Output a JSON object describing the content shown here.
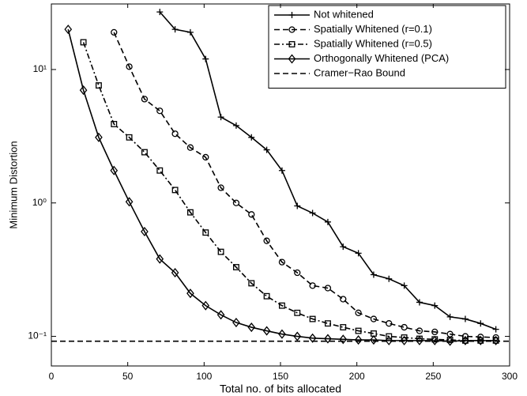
{
  "chart_data": {
    "type": "line",
    "xlabel": "Total no. of bits allocated",
    "ylabel": "Minimum Distortion",
    "x": [
      11,
      21,
      31,
      41,
      51,
      61,
      71,
      81,
      91,
      101,
      111,
      121,
      131,
      141,
      151,
      161,
      171,
      181,
      191,
      201,
      211,
      221,
      231,
      241,
      251,
      261,
      271,
      281,
      291
    ],
    "series": [
      {
        "name": "Not whitened",
        "color": "#000000",
        "marker": "plus",
        "dash": "solid",
        "values": [
          null,
          null,
          null,
          null,
          null,
          null,
          27,
          20,
          19,
          12,
          4.4,
          3.8,
          3.1,
          2.5,
          1.75,
          0.95,
          0.84,
          0.72,
          0.47,
          0.42,
          0.29,
          0.27,
          0.24,
          0.18,
          0.17,
          0.14,
          0.135,
          0.125,
          0.113
        ]
      },
      {
        "name": "Spatially Whitened (r=0.1)",
        "color": "#000000",
        "marker": "circle",
        "dash": "dashed",
        "values": [
          null,
          null,
          null,
          19,
          10.5,
          6,
          4.9,
          3.3,
          2.6,
          2.2,
          1.3,
          1.0,
          0.82,
          0.52,
          0.36,
          0.3,
          0.24,
          0.23,
          0.19,
          0.15,
          0.135,
          0.125,
          0.117,
          0.11,
          0.108,
          0.104,
          0.1,
          0.099,
          0.098
        ]
      },
      {
        "name": "Spatially Whitened (r=0.5)",
        "color": "#000000",
        "marker": "square",
        "dash": "dashdot",
        "values": [
          null,
          16,
          7.6,
          3.9,
          3.1,
          2.4,
          1.75,
          1.25,
          0.85,
          0.6,
          0.43,
          0.33,
          0.25,
          0.2,
          0.17,
          0.15,
          0.135,
          0.125,
          0.117,
          0.11,
          0.105,
          0.1,
          0.098,
          0.096,
          0.095,
          0.094,
          0.093,
          0.093,
          0.093
        ]
      },
      {
        "name": "Orthogonally Whitened (PCA)",
        "color": "#000000",
        "marker": "diamond",
        "dash": "solid",
        "values": [
          20,
          7,
          3.1,
          1.75,
          1.02,
          0.61,
          0.38,
          0.3,
          0.21,
          0.17,
          0.145,
          0.127,
          0.117,
          0.11,
          0.104,
          0.1,
          0.097,
          0.096,
          0.095,
          0.094,
          0.094,
          0.093,
          0.093,
          0.093,
          0.093,
          0.092,
          0.093,
          0.093,
          0.093
        ]
      },
      {
        "name": "Cramer−Rao Bound",
        "color": "#000000",
        "marker": "none",
        "dash": "dashed",
        "x": [
          0,
          300
        ],
        "values": [
          0.092,
          0.092
        ]
      }
    ],
    "xlim": [
      0,
      300
    ],
    "xticks": [
      0,
      50,
      100,
      150,
      200,
      250,
      300
    ],
    "ylim": [
      0.06,
      31
    ],
    "ylog": true,
    "yticks": [
      {
        "value": 0.1,
        "label": "10⁻¹"
      },
      {
        "value": 1,
        "label": "10⁰"
      },
      {
        "value": 10,
        "label": "10¹"
      }
    ],
    "grid": false,
    "legend": "upper right"
  }
}
